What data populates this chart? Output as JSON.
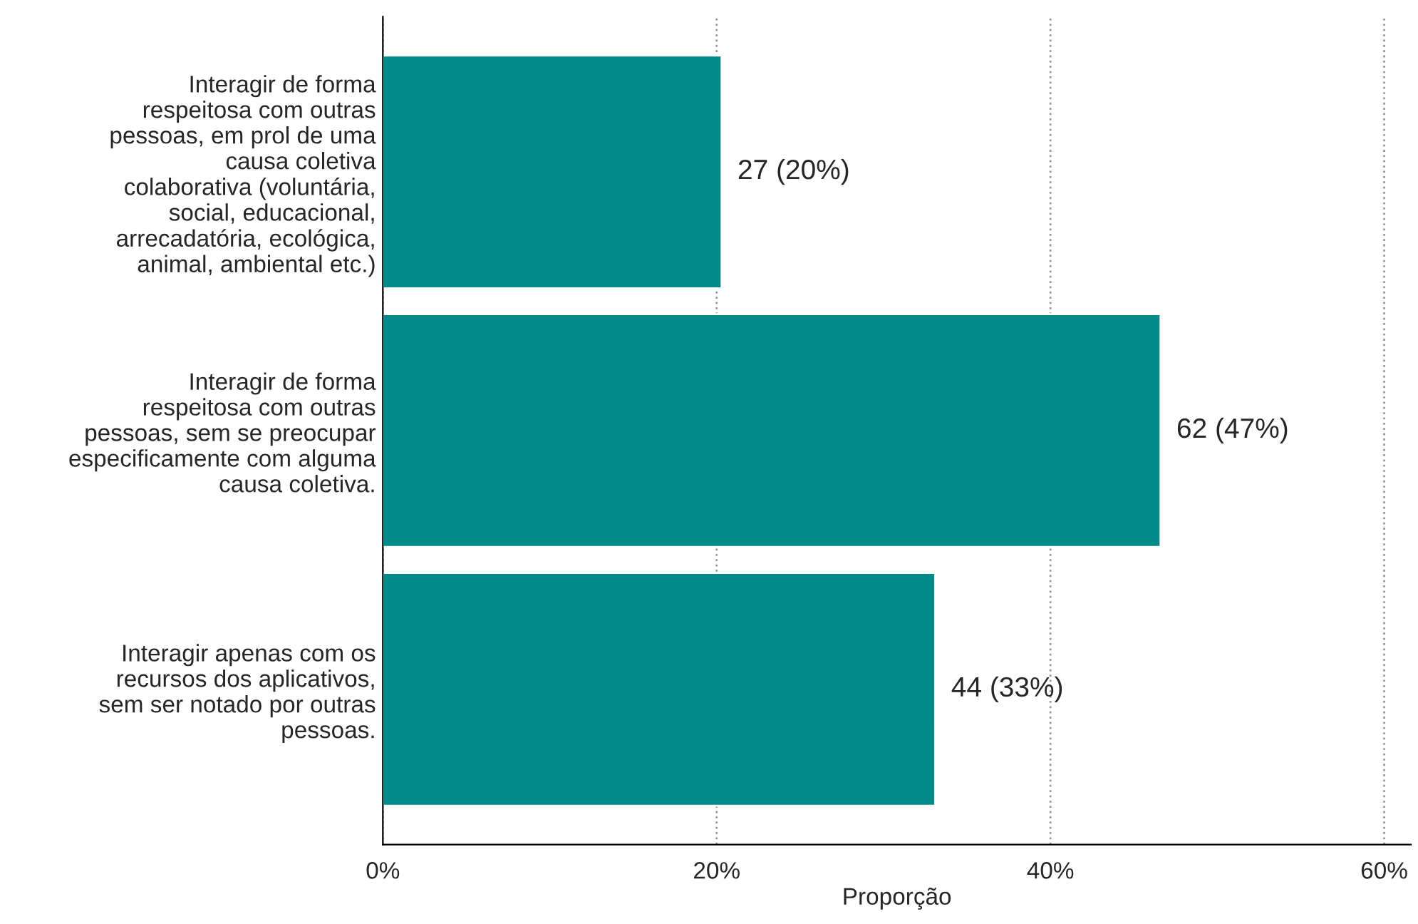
{
  "chart_data": {
    "type": "bar",
    "orientation": "horizontal",
    "xlabel": "Proporção",
    "categories": [
      "Interagir de forma\nrespeitosa com outras\npessoas, em prol de uma\ncausa coletiva\ncolaborativa (voluntária,\nsocial, educacional,\narrecadatória, ecológica,\nanimal, ambiental etc.)",
      "Interagir de forma\nrespeitosa com outras\npessoas, sem se preocupar\nespecificamente com alguma\ncausa coletiva.",
      "Interagir apenas com os\nrecursos dos aplicativos,\nsem ser notado por outras\npessoas."
    ],
    "values": [
      20.3,
      46.6,
      33.1
    ],
    "value_labels": [
      "27 (20%)",
      "62 (47%)",
      "44 (33%)"
    ],
    "color": "#008b8b",
    "xlim": [
      0,
      61.6
    ],
    "xticks": [
      {
        "value": 0,
        "label": "0%"
      },
      {
        "value": 20,
        "label": "20%"
      },
      {
        "value": 40,
        "label": "40%"
      },
      {
        "value": 60,
        "label": "60%"
      }
    ],
    "grid": "x"
  }
}
